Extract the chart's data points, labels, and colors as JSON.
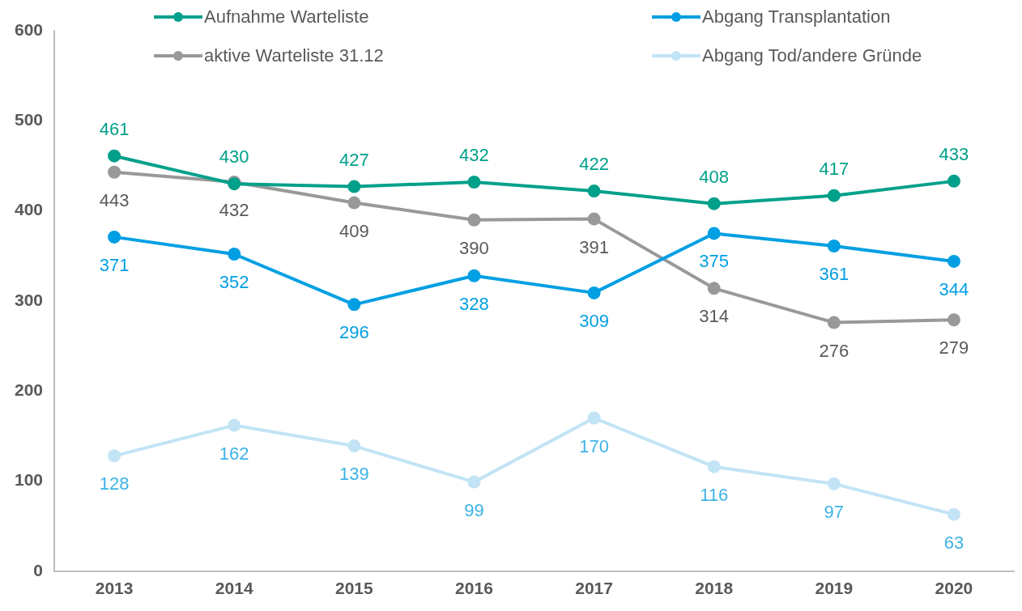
{
  "chart_data": {
    "type": "line",
    "categories": [
      "2013",
      "2014",
      "2015",
      "2016",
      "2017",
      "2018",
      "2019",
      "2020"
    ],
    "series": [
      {
        "name": "Aufnahme Warteliste",
        "color": "#00a08a",
        "values": [
          461,
          430,
          427,
          432,
          422,
          408,
          417,
          433
        ]
      },
      {
        "name": "Abgang Transplantation",
        "color": "#009fe3",
        "values": [
          371,
          352,
          296,
          328,
          309,
          375,
          361,
          344
        ]
      },
      {
        "name": "aktive Warteliste 31.12",
        "color": "#999999",
        "values": [
          443,
          432,
          409,
          390,
          391,
          314,
          276,
          279
        ]
      },
      {
        "name": "Abgang Tod/andere Gründe",
        "color": "#c2e4f5",
        "values": [
          128,
          162,
          139,
          99,
          170,
          116,
          97,
          63
        ]
      }
    ],
    "ylim": [
      0,
      600
    ],
    "yticks": [
      0,
      100,
      200,
      300,
      400,
      500,
      600
    ],
    "grid": false,
    "legend": "top",
    "marker": "circle",
    "line_style": "solid",
    "data_labels": true
  }
}
